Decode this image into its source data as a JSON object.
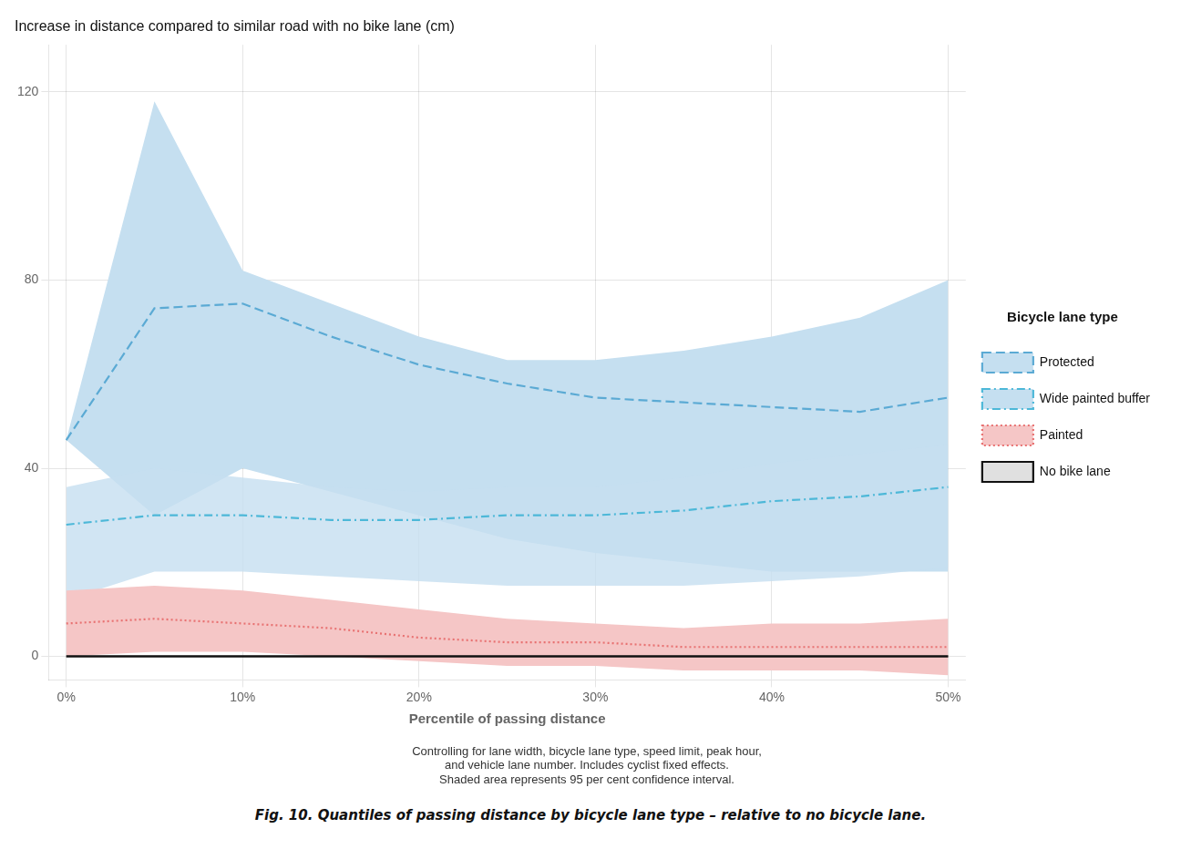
{
  "chart_data": {
    "type": "line",
    "title": "Increase in distance compared to similar road with no bike lane (cm)",
    "xlabel": "Percentile of passing distance",
    "subtitle": "Controlling for lane width, bicycle lane type, speed limit, peak hour,\nand vehicle lane number. Includes cyclist fixed effects.\nShaded area represents 95 per cent confidence interval.",
    "caption": "Fig. 10.  Quantiles of passing distance by bicycle lane type – relative to no bicycle lane.",
    "legend_title": "Bicycle lane type",
    "legend": "right",
    "grid": true,
    "x": [
      0,
      5,
      10,
      15,
      20,
      25,
      30,
      35,
      40,
      45,
      50
    ],
    "series": [
      {
        "name": "Protected",
        "color": "#5baad4",
        "band_color": "#c5dff0",
        "line_style": "dashed",
        "values": [
          46,
          74,
          75,
          68,
          62,
          58,
          55,
          54,
          53,
          52,
          55
        ],
        "upper": [
          46,
          118,
          82,
          75,
          68,
          63,
          63,
          65,
          68,
          72,
          80
        ],
        "lower": [
          46,
          30,
          40,
          35,
          30,
          25,
          22,
          20,
          18,
          18,
          18
        ]
      },
      {
        "name": "Wide painted buffer",
        "color": "#4db8d8",
        "band_color": "#c5dff0",
        "line_style": "dashdot",
        "values": [
          28,
          30,
          30,
          29,
          29,
          30,
          30,
          31,
          33,
          34,
          36
        ],
        "upper": [
          36,
          40,
          38,
          36,
          35,
          36,
          36,
          38,
          41,
          43,
          45
        ],
        "lower": [
          12,
          18,
          18,
          17,
          16,
          15,
          15,
          15,
          16,
          17,
          19
        ]
      },
      {
        "name": "Painted",
        "color": "#e87272",
        "band_color": "#f5c6c6",
        "line_style": "dotted",
        "values": [
          7,
          8,
          7,
          6,
          4,
          3,
          3,
          2,
          2,
          2,
          2
        ],
        "upper": [
          14,
          15,
          14,
          12,
          10,
          8,
          7,
          6,
          7,
          7,
          8
        ],
        "lower": [
          0,
          1,
          1,
          0,
          -1,
          -2,
          -2,
          -3,
          -3,
          -3,
          -4
        ]
      },
      {
        "name": "No bike lane",
        "color": "#111111",
        "band_color": "#e0e0e0",
        "line_style": "solid",
        "values": [
          0,
          0,
          0,
          0,
          0,
          0,
          0,
          0,
          0,
          0,
          0
        ]
      }
    ],
    "xlim": [
      -1,
      51
    ],
    "xticks": [
      {
        "value": 0,
        "label": "0%"
      },
      {
        "value": 10,
        "label": "10%"
      },
      {
        "value": 20,
        "label": "20%"
      },
      {
        "value": 30,
        "label": "30%"
      },
      {
        "value": 40,
        "label": "40%"
      },
      {
        "value": 50,
        "label": "50%"
      }
    ],
    "ylim": [
      -5,
      130
    ],
    "yticks": [
      0,
      40,
      80,
      120
    ]
  }
}
